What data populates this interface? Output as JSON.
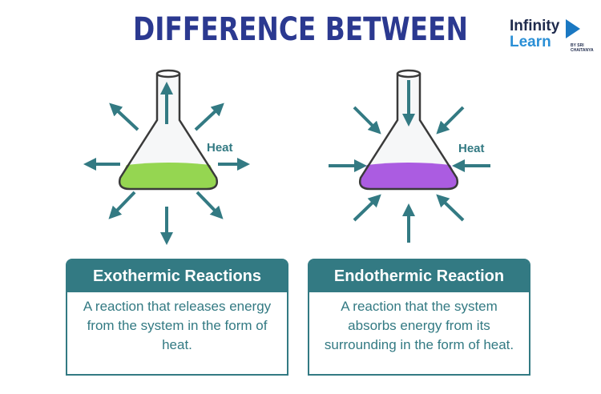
{
  "title": "DIFFERENCE BETWEEN",
  "logo": {
    "line1": "Infinity",
    "line2": "Learn",
    "tagline": "BY SRI CHAITANYA"
  },
  "colors": {
    "title": "#2b3990",
    "teal": "#337a83",
    "exo_liquid": "#7ed321",
    "endo_liquid": "#9b30e0"
  },
  "exothermic": {
    "heat_label": "Heat",
    "heading": "Exothermic Reactions",
    "description": "A reaction that releases energy from the system in the form of heat.",
    "arrow_direction": "outward"
  },
  "endothermic": {
    "heat_label": "Heat",
    "heading": "Endothermic Reaction",
    "description": "A reaction that the system absorbs energy from its surrounding in the form of heat.",
    "arrow_direction": "inward"
  }
}
